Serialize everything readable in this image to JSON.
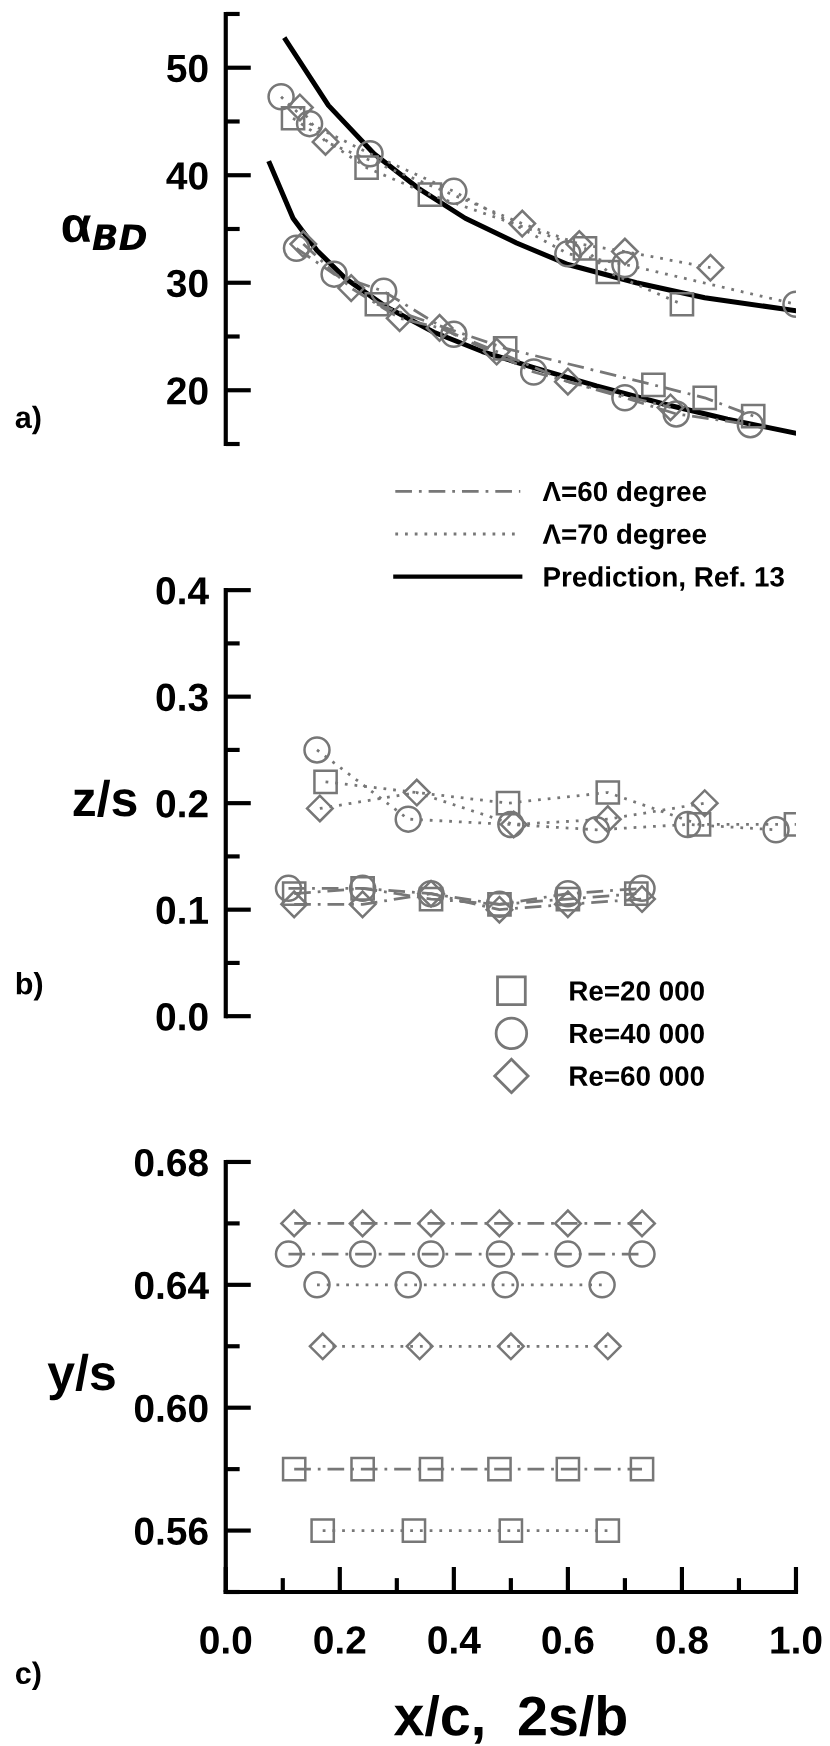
{
  "chart_data": [
    {
      "type": "line",
      "ylabel": "α$_{BD}$",
      "annotations": [
        "a)",
        "Λ=60 degree",
        "Λ=70 degree",
        "Prediction, Ref. 13"
      ],
      "tick_labels": "y",
      "xlim": [
        0,
        1
      ],
      "ylim": [
        15,
        55
      ],
      "yticks": [
        20,
        30,
        40,
        50
      ],
      "series": [
        {
          "color": "#777777",
          "marker": "square",
          "line_style": "dashdot",
          "x": [
            0.265,
            0.49,
            0.75,
            0.84,
            0.925
          ],
          "values": [
            28.0,
            23.9,
            20.5,
            19.3,
            17.6
          ]
        },
        {
          "color": "#777777",
          "marker": "circle",
          "line_style": "dashdot",
          "x": [
            0.124,
            0.19,
            0.277,
            0.4,
            0.54,
            0.7,
            0.79,
            0.92
          ],
          "values": [
            33.2,
            30.8,
            29.2,
            25.2,
            21.7,
            19.3,
            17.8,
            16.8
          ]
        },
        {
          "color": "#777777",
          "marker": "diamond",
          "line_style": "dashdot",
          "x": [
            0.136,
            0.22,
            0.305,
            0.375,
            0.475,
            0.6,
            0.78
          ],
          "values": [
            33.6,
            29.5,
            26.7,
            25.8,
            23.6,
            20.8,
            18.4
          ]
        },
        {
          "color": "#777777",
          "marker": "square",
          "line_style": "dotted",
          "x": [
            0.118,
            0.247,
            0.358,
            0.63,
            0.67,
            0.8
          ],
          "values": [
            45.3,
            40.7,
            38.2,
            33.2,
            31.0,
            28.0
          ]
        },
        {
          "color": "#777777",
          "marker": "circle",
          "line_style": "dotted",
          "x": [
            0.097,
            0.147,
            0.253,
            0.4,
            0.6,
            0.7,
            1.0
          ],
          "values": [
            47.3,
            44.8,
            42.0,
            38.5,
            32.7,
            31.7,
            28.0
          ]
        },
        {
          "color": "#777777",
          "marker": "diamond",
          "line_style": "dotted",
          "x": [
            0.13,
            0.175,
            0.52,
            0.62,
            0.7,
            0.85
          ],
          "values": [
            46.3,
            43.1,
            35.5,
            33.6,
            32.9,
            31.4
          ]
        },
        {
          "color": "#000000",
          "marker": "none",
          "line_style": "solid",
          "x": [
            0.105,
            0.18,
            0.26,
            0.34,
            0.42,
            0.51,
            0.6,
            0.72,
            0.84,
            1.0
          ],
          "values": [
            52.6,
            46.5,
            42.0,
            38.7,
            36.0,
            33.7,
            31.7,
            30.0,
            28.6,
            27.4
          ]
        },
        {
          "color": "#000000",
          "marker": "none",
          "line_style": "solid",
          "x": [
            0.077,
            0.118,
            0.16,
            0.21,
            0.28,
            0.365,
            0.45,
            0.54,
            0.65,
            0.77,
            0.88,
            1.0
          ],
          "values": [
            41.1,
            36.0,
            33.0,
            30.4,
            27.8,
            25.4,
            23.6,
            22.1,
            20.4,
            18.7,
            17.3,
            16.0
          ]
        }
      ]
    },
    {
      "type": "line",
      "ylabel": "z/s",
      "annotations": [
        "b)",
        "Re=20 000",
        "Re=40 000",
        "Re=60 000"
      ],
      "tick_labels": "y",
      "xlim": [
        0,
        1
      ],
      "ylim": [
        0,
        0.4
      ],
      "yticks": [
        {
          "value": 0,
          "label": "0.0"
        },
        0.1,
        0.2,
        0.3,
        0.4
      ],
      "series": [
        {
          "color": "#777777",
          "marker": "square",
          "line_style": "dashdot",
          "x": [
            0.12,
            0.24,
            0.36,
            0.48,
            0.6,
            0.72
          ],
          "values": [
            0.115,
            0.12,
            0.11,
            0.105,
            0.11,
            0.115
          ]
        },
        {
          "color": "#777777",
          "marker": "circle",
          "line_style": "dashdot",
          "x": [
            0.11,
            0.24,
            0.36,
            0.48,
            0.6,
            0.73
          ],
          "values": [
            0.12,
            0.12,
            0.115,
            0.105,
            0.115,
            0.12
          ]
        },
        {
          "color": "#777777",
          "marker": "diamond",
          "line_style": "dashdot",
          "x": [
            0.12,
            0.24,
            0.36,
            0.48,
            0.6,
            0.73
          ],
          "values": [
            0.105,
            0.105,
            0.115,
            0.1,
            0.105,
            0.11
          ]
        },
        {
          "color": "#777777",
          "marker": "square",
          "line_style": "dotted",
          "x": [
            0.175,
            0.495,
            0.67,
            0.83,
            1.0
          ],
          "values": [
            0.22,
            0.2,
            0.21,
            0.18,
            0.18
          ]
        },
        {
          "color": "#777777",
          "marker": "circle",
          "line_style": "dotted",
          "x": [
            0.16,
            0.32,
            0.5,
            0.65,
            0.81,
            0.965
          ],
          "values": [
            0.25,
            0.185,
            0.18,
            0.175,
            0.18,
            0.175
          ]
        },
        {
          "color": "#777777",
          "marker": "diamond",
          "line_style": "dotted",
          "x": [
            0.165,
            0.335,
            0.505,
            0.67,
            0.84
          ],
          "values": [
            0.195,
            0.21,
            0.18,
            0.185,
            0.2
          ]
        }
      ]
    },
    {
      "type": "line",
      "xlabel": "x/c,  2s/b",
      "ylabel": "y/s",
      "annotations": [
        "c)"
      ],
      "xlim": [
        0,
        1
      ],
      "ylim": [
        0.54,
        0.68
      ],
      "xticks": [
        {
          "value": 0,
          "label": "0.0"
        },
        0.2,
        0.4,
        0.6,
        0.8,
        {
          "value": 1,
          "label": "1.0"
        }
      ],
      "yticks": [
        0.56,
        {
          "value": 0.6,
          "label": "0.60"
        },
        0.64,
        0.68
      ],
      "series": [
        {
          "color": "#777777",
          "marker": "square",
          "line_style": "dashdot",
          "x": [
            0.12,
            0.24,
            0.36,
            0.48,
            0.6,
            0.73
          ],
          "values": [
            0.58,
            0.58,
            0.58,
            0.58,
            0.58,
            0.58
          ]
        },
        {
          "color": "#777777",
          "marker": "circle",
          "line_style": "dashdot",
          "x": [
            0.11,
            0.24,
            0.36,
            0.48,
            0.6,
            0.73
          ],
          "values": [
            0.65,
            0.65,
            0.65,
            0.65,
            0.65,
            0.65
          ]
        },
        {
          "color": "#777777",
          "marker": "diamond",
          "line_style": "dashdot",
          "x": [
            0.12,
            0.24,
            0.36,
            0.48,
            0.6,
            0.73
          ],
          "values": [
            0.66,
            0.66,
            0.66,
            0.66,
            0.66,
            0.66
          ]
        },
        {
          "color": "#777777",
          "marker": "square",
          "line_style": "dotted",
          "x": [
            0.17,
            0.33,
            0.5,
            0.67
          ],
          "values": [
            0.56,
            0.56,
            0.56,
            0.56
          ]
        },
        {
          "color": "#777777",
          "marker": "circle",
          "line_style": "dotted",
          "x": [
            0.16,
            0.32,
            0.49,
            0.66
          ],
          "values": [
            0.64,
            0.64,
            0.64,
            0.64
          ]
        },
        {
          "color": "#777777",
          "marker": "diamond",
          "line_style": "dotted",
          "x": [
            0.17,
            0.34,
            0.5,
            0.67
          ],
          "values": [
            0.62,
            0.62,
            0.62,
            0.62
          ]
        }
      ]
    }
  ]
}
